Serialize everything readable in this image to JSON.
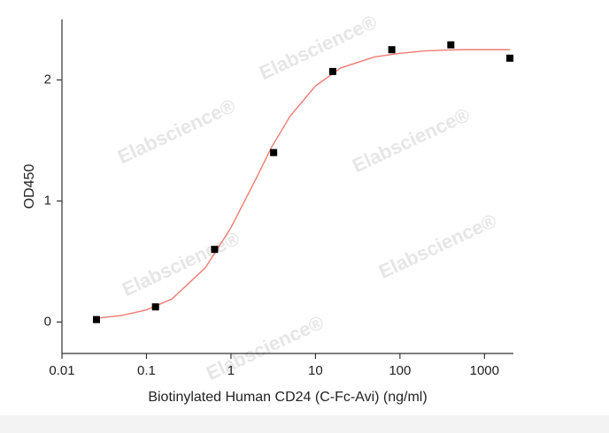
{
  "chart_data": {
    "type": "scatter",
    "xlabel": "Biotinylated Human CD24 (C-Fc-Avi) (ng/ml)",
    "ylabel": "OD450",
    "xscale": "log",
    "xlim": [
      0.01,
      2200
    ],
    "xticks": [
      0.01,
      0.1,
      1,
      10,
      100,
      1000
    ],
    "ylim": [
      -0.26,
      2.5
    ],
    "yticks": [
      0,
      1,
      2
    ],
    "grid": false,
    "watermarks": [
      "Elabscience®",
      "Elabscience®",
      "Elabscience®",
      "Elabscience®",
      "Elabscience®",
      "Elabscience®"
    ],
    "series": [
      {
        "mode": "markers",
        "color": "#000000",
        "x": [
          0.0256,
          0.128,
          0.64,
          3.2,
          16,
          80,
          400,
          2000
        ],
        "values": [
          0.02,
          0.125,
          0.6,
          1.4,
          2.07,
          2.25,
          2.29,
          2.18
        ]
      },
      {
        "mode": "line",
        "color": "#f07b73",
        "x": [
          0.0256,
          0.05,
          0.1,
          0.2,
          0.5,
          1,
          2,
          3,
          5,
          10,
          20,
          50,
          100,
          200,
          500,
          1000,
          2000
        ],
        "values": [
          0.031,
          0.053,
          0.1,
          0.19,
          0.45,
          0.78,
          1.19,
          1.44,
          1.7,
          1.95,
          2.1,
          2.19,
          2.22,
          2.24,
          2.25,
          2.25,
          2.25
        ]
      }
    ]
  }
}
